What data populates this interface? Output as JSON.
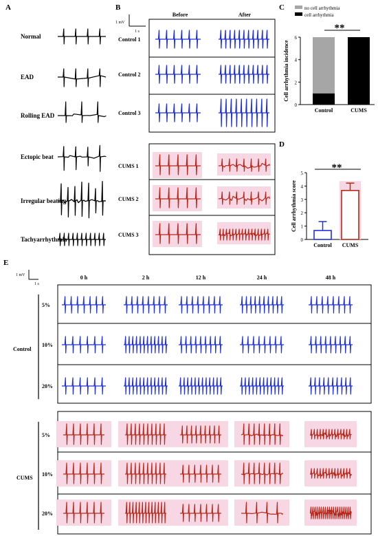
{
  "panels": {
    "A": {
      "letter": "A",
      "rows": [
        "Normal",
        "EAD",
        "Rolling EAD",
        "Ectopic beat",
        "Irregular beating",
        "Tachyarrhythmia"
      ]
    },
    "B": {
      "letter": "B",
      "scale": {
        "mv": "1 mV",
        "s": "1 s"
      },
      "col_before": "Before",
      "col_after": "After",
      "control_rows": [
        "Control 1",
        "Control 2",
        "Control 3"
      ],
      "cums_rows": [
        "CUMS 1",
        "CUMS 2",
        "CUMS 3"
      ]
    },
    "C": {
      "letter": "C",
      "significance": "**",
      "legend": [
        "no  cell arrhythmia",
        "cell arrhythmia"
      ]
    },
    "D": {
      "letter": "D",
      "significance": "**"
    },
    "E": {
      "letter": "E",
      "scale": {
        "mv": "1 mV",
        "s": "1 s"
      },
      "time_cols": [
        "0 h",
        "2 h",
        "12 h",
        "24 h",
        "48 h"
      ],
      "concentrations": [
        "5%",
        "10%",
        "20%"
      ],
      "groups": [
        "Control",
        "CUMS"
      ]
    }
  },
  "colors": {
    "control": "#1f2fd6",
    "cums": "#b8281a",
    "pink": "#f7d7e3",
    "gray": "#a6a6a6",
    "black": "#000000"
  },
  "chart_data": [
    {
      "type": "bar",
      "stacked": true,
      "ylabel": "Cell arrhythmia incidence",
      "categories": [
        "Control",
        "CUMS"
      ],
      "series": [
        {
          "name": "no  cell arrhythmia",
          "values": [
            5,
            0
          ]
        },
        {
          "name": "cell arrhythmia",
          "values": [
            1,
            6
          ]
        }
      ],
      "ylim": [
        0,
        6
      ],
      "yticks": [
        0,
        2,
        4,
        6
      ],
      "legend": "top"
    },
    {
      "type": "bar",
      "ylabel": "Cell arrhythmia score",
      "categories": [
        "Control",
        "CUMS"
      ],
      "values": [
        0.67,
        3.67
      ],
      "errors": [
        0.67,
        0.55
      ],
      "ylim": [
        0,
        5
      ],
      "yticks": [
        0,
        1,
        2,
        3,
        4,
        5
      ]
    }
  ]
}
